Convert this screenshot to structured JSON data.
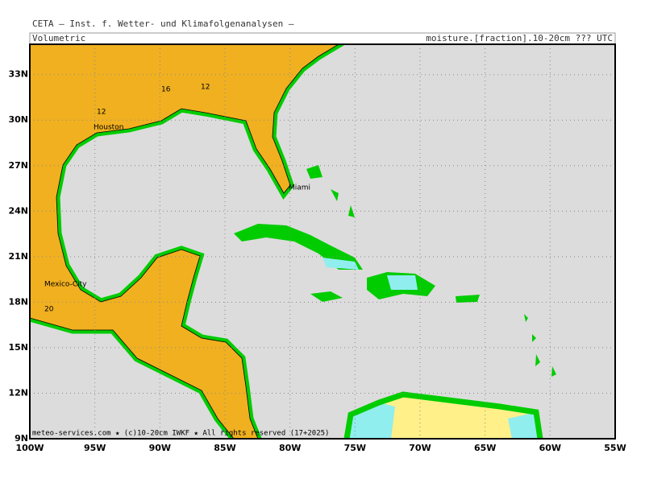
{
  "header": {
    "title": "CETA — Inst. f. Wetter- und Klimafolgenanalysen —",
    "left_label": "Volumetric",
    "right_label": "moisture.[fraction].10-20cm ??? UTC"
  },
  "map": {
    "lonlim": [
      -100,
      -55
    ],
    "latlim": [
      9,
      35
    ],
    "lon_ticks": [
      {
        "value": -100,
        "label": "100W"
      },
      {
        "value": -95,
        "label": "95W"
      },
      {
        "value": -90,
        "label": "90W"
      },
      {
        "value": -85,
        "label": "85W"
      },
      {
        "value": -80,
        "label": "80W"
      },
      {
        "value": -75,
        "label": "75W"
      },
      {
        "value": -70,
        "label": "70W"
      },
      {
        "value": -65,
        "label": "65W"
      },
      {
        "value": -60,
        "label": "60W"
      },
      {
        "value": -55,
        "label": "55W"
      }
    ],
    "lat_ticks": [
      {
        "value": 9,
        "label": "9N"
      },
      {
        "value": 12,
        "label": "12N"
      },
      {
        "value": 15,
        "label": "15N"
      },
      {
        "value": 18,
        "label": "18N"
      },
      {
        "value": 21,
        "label": "21N"
      },
      {
        "value": 24,
        "label": "24N"
      },
      {
        "value": 27,
        "label": "27N"
      },
      {
        "value": 30,
        "label": "30N"
      },
      {
        "value": 33,
        "label": "33N"
      }
    ],
    "cities": [
      "Houston",
      "Miami",
      "Mexico-City"
    ],
    "contour_labels": [
      16,
      12,
      12,
      20
    ]
  },
  "footer": "meteo-services.com ★ (c)10-20cm IWKF ★ All rights reserved (17+2025)"
}
